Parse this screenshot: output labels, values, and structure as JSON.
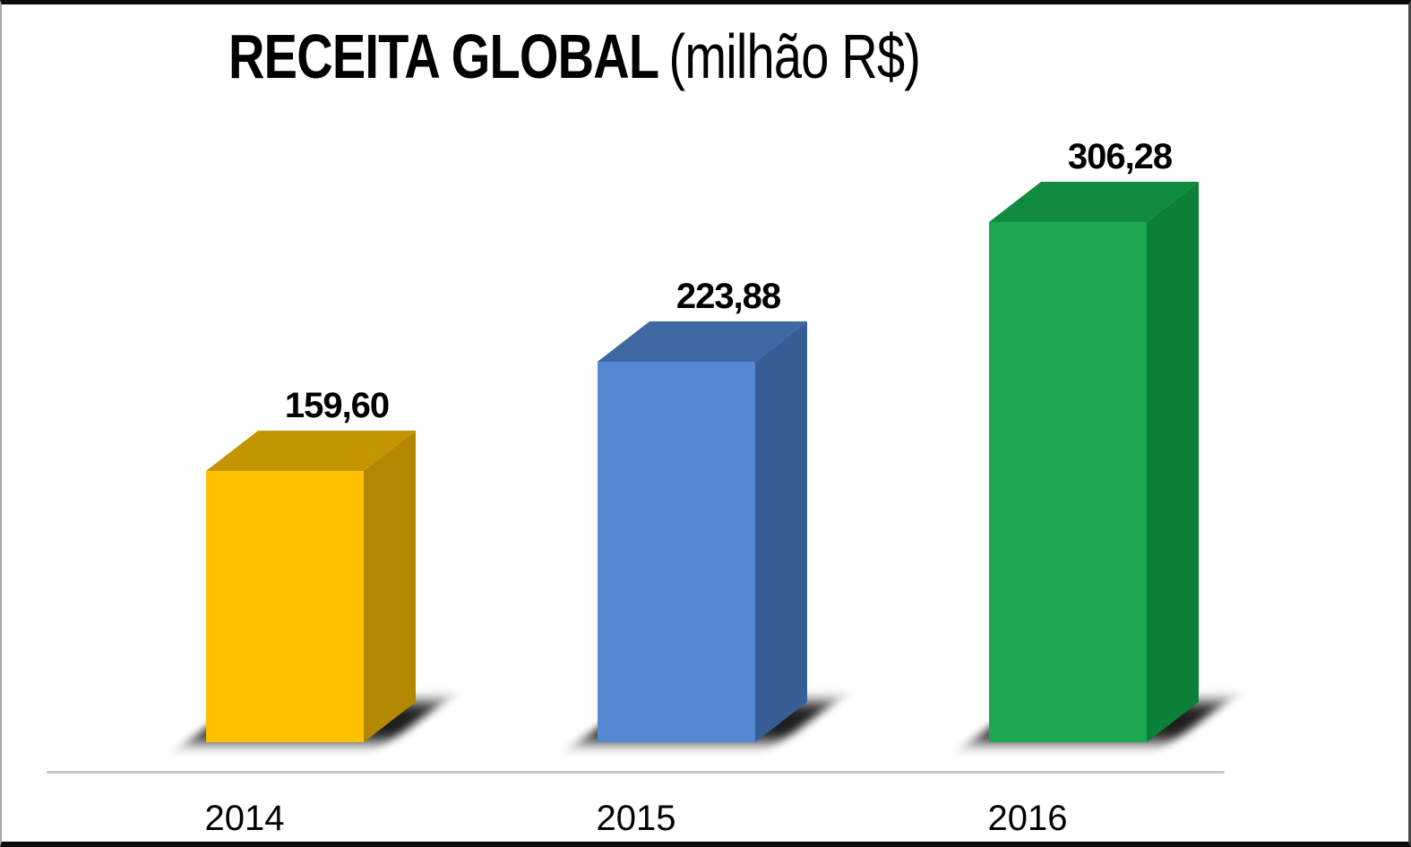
{
  "chart_data": {
    "type": "bar",
    "style": "3d-column",
    "title": "RECEITA GLOBAL (milhão R$)",
    "title_bold": "RECEITA GLOBAL",
    "title_regular": "(milhão R$)",
    "categories": [
      "2014",
      "2015",
      "2016"
    ],
    "values": [
      159.6,
      223.88,
      306.28
    ],
    "value_labels": [
      "159,60",
      "223,88",
      "306,28"
    ],
    "unit": "milhão R$",
    "xlabel": "",
    "ylabel": "",
    "ylim": [
      0,
      340
    ],
    "grid": false,
    "legend_position": "none",
    "background_color": "#ffffff",
    "axis_line_color": "#c8c8c8",
    "label_color": "#000000",
    "bar_colors": [
      {
        "name": "gold",
        "front": "#FFC000",
        "top": "#C39500",
        "side": "#B38800"
      },
      {
        "name": "blue",
        "front": "#5589D3",
        "top": "#3D68A1",
        "side": "#365E95"
      },
      {
        "name": "green",
        "front": "#1DA750",
        "top": "#0E8B3D",
        "side": "#0A8038"
      }
    ]
  }
}
